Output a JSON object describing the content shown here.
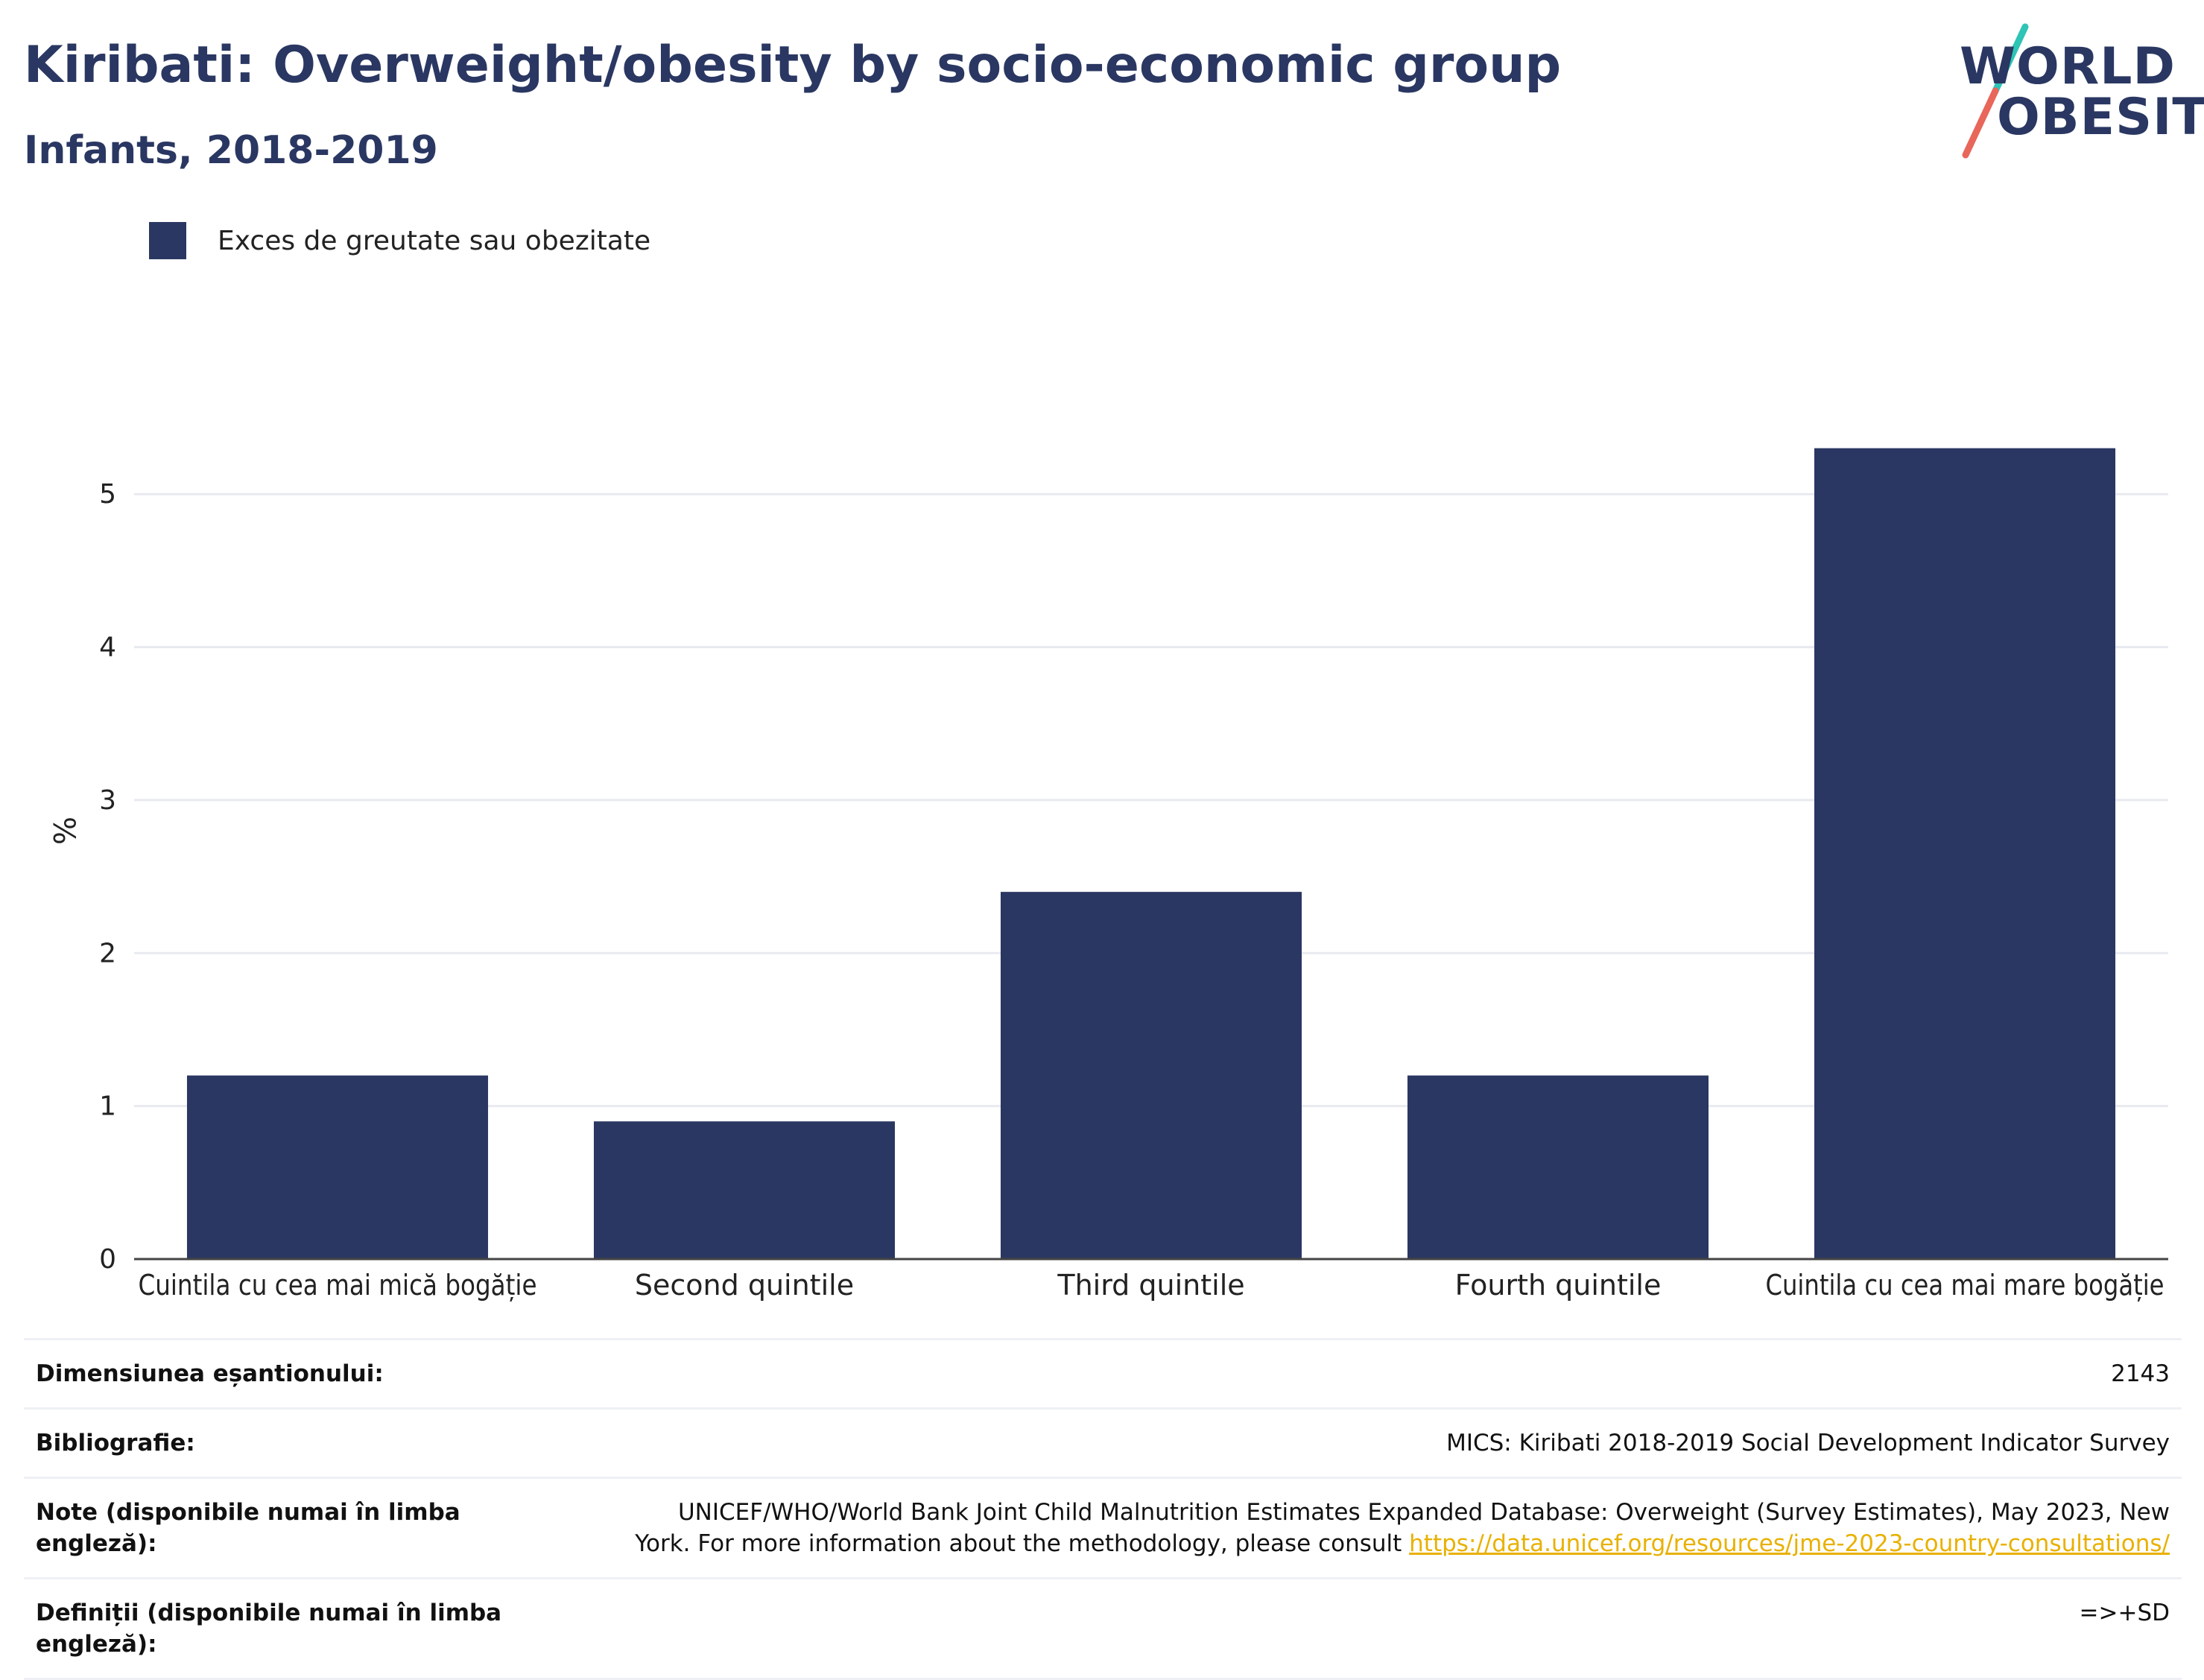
{
  "header": {
    "title": "Kiribati: Overweight/obesity by socio-economic group",
    "subtitle": "Infants, 2018-2019"
  },
  "logo": {
    "line1": "WORLD",
    "line2": "OBESITY",
    "colors": {
      "slash_top": "#2ec4b6",
      "slash_bottom": "#e8665a"
    }
  },
  "legend": {
    "items": [
      {
        "label": "Exces de greutate sau obezitate",
        "color": "#2a3762"
      }
    ]
  },
  "chart_data": {
    "type": "bar",
    "categories": [
      "Cuintila cu cea mai mică bogăție",
      "Second quintile",
      "Third quintile",
      "Fourth quintile",
      "Cuintila cu cea mai mare bogăție"
    ],
    "series": [
      {
        "name": "Exces de greutate sau obezitate",
        "values": [
          1.2,
          0.9,
          2.4,
          1.2,
          5.3
        ],
        "color": "#2a3762"
      }
    ],
    "ylabel": "%",
    "yticks": [
      0,
      1,
      2,
      3,
      4,
      5
    ],
    "ylim": [
      0,
      5.6
    ],
    "grid": true
  },
  "info": {
    "rows": [
      {
        "key": "Dimensiunea eșantionului:",
        "value": "2143"
      },
      {
        "key": "Bibliografie:",
        "value": "MICS: Kiribati 2018-2019 Social Development Indicator Survey"
      },
      {
        "key": "Note (disponibile numai în limba engleză):",
        "value": "UNICEF/WHO/World Bank Joint Child Malnutrition Estimates Expanded Database: Overweight (Survey Estimates), May 2023, New York. For more information about the methodology, please consult ",
        "link": "https://data.unicef.org/resources/jme-2023-country-consultations/"
      },
      {
        "key": "Definiții (disponibile numai în limba engleză):",
        "value": "=>+SD"
      }
    ]
  }
}
